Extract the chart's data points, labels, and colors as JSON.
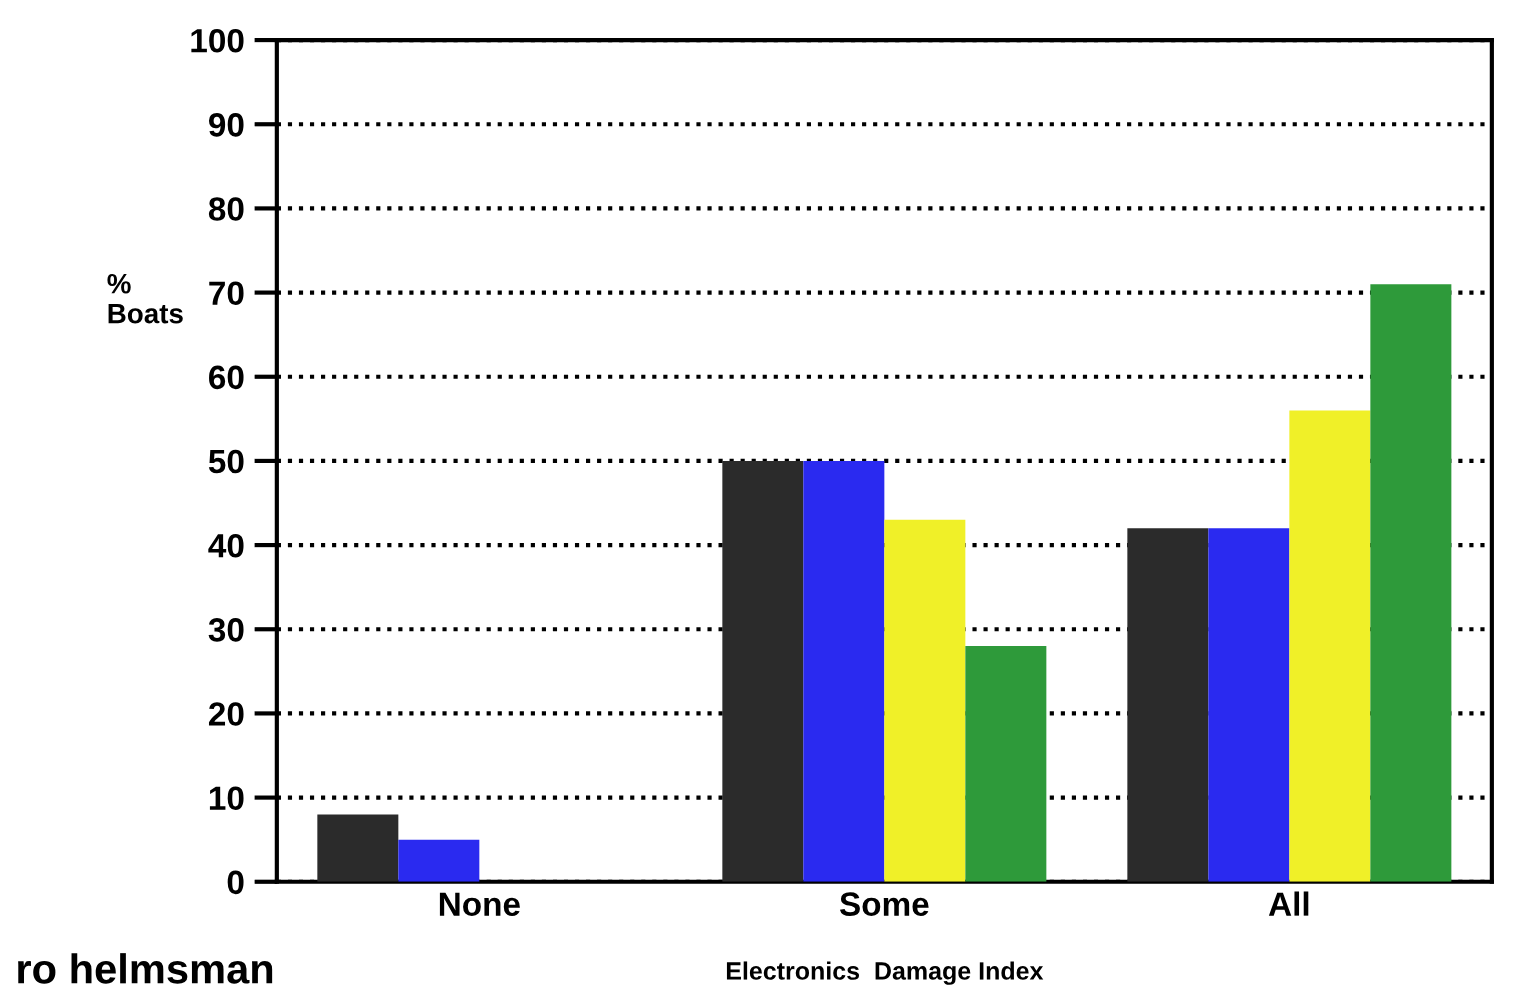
{
  "chart_data": {
    "type": "bar",
    "categories": [
      "None",
      "Some",
      "All"
    ],
    "series": [
      {
        "color": "#2b2b2b",
        "values": [
          8,
          50,
          42
        ]
      },
      {
        "color": "#2a2af0",
        "values": [
          5,
          50,
          42
        ]
      },
      {
        "color": "#f0f028",
        "values": [
          0,
          43,
          56
        ]
      },
      {
        "color": "#2e9a3a",
        "values": [
          0,
          28,
          71
        ]
      }
    ],
    "ylabel": "%\nBoats",
    "xlabel": "Electronics  Damage Index",
    "ylim": [
      0,
      100
    ],
    "yticks": [
      0,
      10,
      20,
      30,
      40,
      50,
      60,
      70,
      80,
      90,
      100
    ],
    "grid": "y",
    "line_style": "dotted",
    "annotations": [
      "ro helmsman"
    ]
  }
}
